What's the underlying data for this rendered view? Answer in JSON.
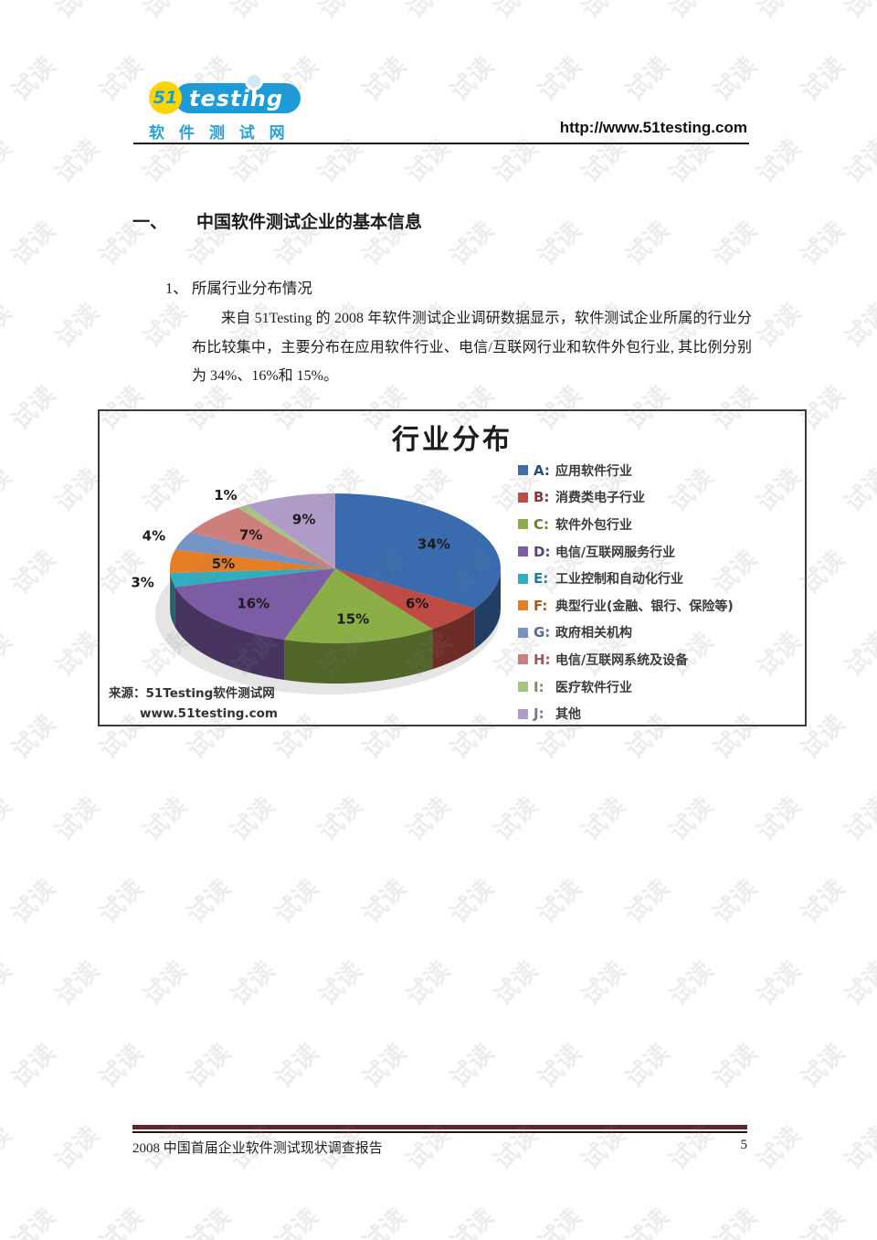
{
  "watermark": {
    "text": "试读"
  },
  "header": {
    "logo": {
      "badge": "51",
      "brand": "testing",
      "subtitle": "软 件 测 试 网"
    },
    "url": "http://www.51testing.com"
  },
  "document": {
    "heading_number": "一、",
    "heading_title": "中国软件测试企业的基本信息",
    "subheading": "1、 所属行业分布情况",
    "paragraph": "来自 51Testing 的 2008 年软件测试企业调研数据显示，软件测试企业所属的行业分布比较集中，主要分布在应用软件行业、电信/互联网行业和软件外包行业, 其比例分别为 34%、16%和 15%。"
  },
  "chart": {
    "source_label": "来源：51Testing软件测试网",
    "source_url": "www.51testing.com"
  },
  "chart_data": {
    "type": "pie",
    "style": "3d",
    "title": "行业分布",
    "legend_position": "right",
    "slices": [
      {
        "letter": "A",
        "label": "应用软件行业",
        "value": 34,
        "color": "#3A6BAE"
      },
      {
        "letter": "B",
        "label": "消费类电子行业",
        "value": 6,
        "color": "#BE4B44"
      },
      {
        "letter": "C",
        "label": "软件外包行业",
        "value": 15,
        "color": "#8CAE46"
      },
      {
        "letter": "D",
        "label": "电信/互联网服务行业",
        "value": 16,
        "color": "#7B5CA5"
      },
      {
        "letter": "E",
        "label": "工业控制和自动化行业",
        "value": 3,
        "color": "#2EAEC1"
      },
      {
        "letter": "F",
        "label": "典型行业(金融、银行、保险等)",
        "value": 5,
        "color": "#E67E26"
      },
      {
        "letter": "G",
        "label": "政府相关机构",
        "value": 4,
        "color": "#7495C5"
      },
      {
        "letter": "H",
        "label": "电信/互联网系统及设备",
        "value": 7,
        "color": "#CD7F7C"
      },
      {
        "letter": "I",
        "label": "医疗软件行业",
        "value": 1,
        "color": "#A9C47E"
      },
      {
        "letter": "J",
        "label": "其他",
        "value": 9,
        "color": "#AF9CC9"
      }
    ]
  },
  "footer": {
    "report_title": "2008 中国首届企业软件测试现状调查报告",
    "page_number": "5"
  }
}
